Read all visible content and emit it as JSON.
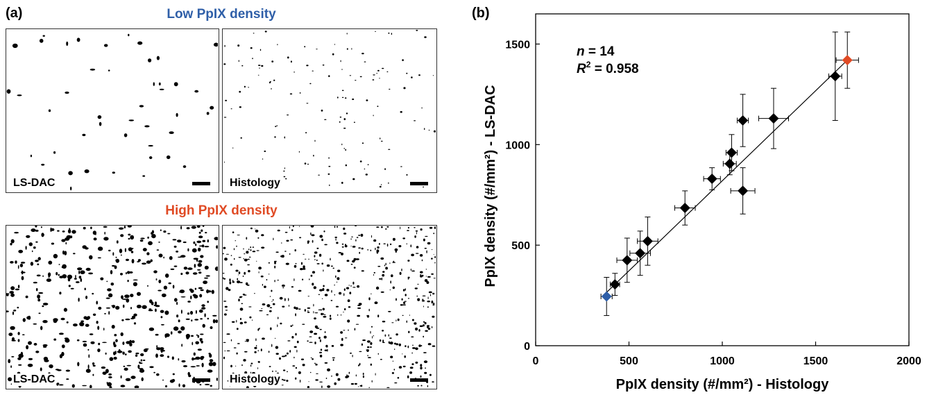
{
  "panel_a": {
    "label": "(a)",
    "low": {
      "title": "Low PpIX density",
      "color": "#2f5fa8",
      "left_label": "LS-DAC",
      "right_label": "Histology"
    },
    "high": {
      "title": "High PpIX density",
      "color": "#e04b25",
      "left_label": "LS-DAC",
      "right_label": "Histology"
    }
  },
  "panel_b": {
    "label": "(b)"
  },
  "chart_data": {
    "type": "scatter",
    "xlabel": "PpIX density (#/mm²) - Histology",
    "ylabel": "PpIX density (#/mm²) - LS-DAC",
    "xlim": [
      0,
      2000
    ],
    "ylim": [
      0,
      1650
    ],
    "xticks": [
      0,
      500,
      1000,
      1500,
      2000
    ],
    "yticks": [
      0,
      500,
      1000,
      1500
    ],
    "annotation_n_prefix": "n",
    "annotation_n_value": " = 14",
    "annotation_r2_prefix": "R",
    "annotation_r2_sup": "2",
    "annotation_r2_value": " = 0.958",
    "grid": false,
    "fit_line": {
      "x": [
        380,
        1670
      ],
      "y": [
        265,
        1420
      ]
    },
    "points": [
      {
        "x": 380,
        "y": 245,
        "xerr": 30,
        "yerr": 95,
        "color": "#2f5fa8"
      },
      {
        "x": 425,
        "y": 305,
        "xerr": 25,
        "yerr": 55,
        "color": "#000000"
      },
      {
        "x": 490,
        "y": 425,
        "xerr": 55,
        "yerr": 110,
        "color": "#000000"
      },
      {
        "x": 560,
        "y": 460,
        "xerr": 55,
        "yerr": 110,
        "color": "#000000"
      },
      {
        "x": 600,
        "y": 520,
        "xerr": 55,
        "yerr": 120,
        "color": "#000000"
      },
      {
        "x": 800,
        "y": 685,
        "xerr": 55,
        "yerr": 85,
        "color": "#000000"
      },
      {
        "x": 945,
        "y": 830,
        "xerr": 45,
        "yerr": 55,
        "color": "#000000"
      },
      {
        "x": 1040,
        "y": 905,
        "xerr": 35,
        "yerr": 55,
        "color": "#000000"
      },
      {
        "x": 1050,
        "y": 960,
        "xerr": 30,
        "yerr": 90,
        "color": "#000000"
      },
      {
        "x": 1110,
        "y": 770,
        "xerr": 65,
        "yerr": 115,
        "color": "#000000"
      },
      {
        "x": 1110,
        "y": 1120,
        "xerr": 30,
        "yerr": 130,
        "color": "#000000"
      },
      {
        "x": 1275,
        "y": 1130,
        "xerr": 80,
        "yerr": 150,
        "color": "#000000"
      },
      {
        "x": 1605,
        "y": 1340,
        "xerr": 35,
        "yerr": 220,
        "color": "#000000"
      },
      {
        "x": 1670,
        "y": 1420,
        "xerr": 60,
        "yerr": 140,
        "color": "#e04b25"
      }
    ]
  }
}
